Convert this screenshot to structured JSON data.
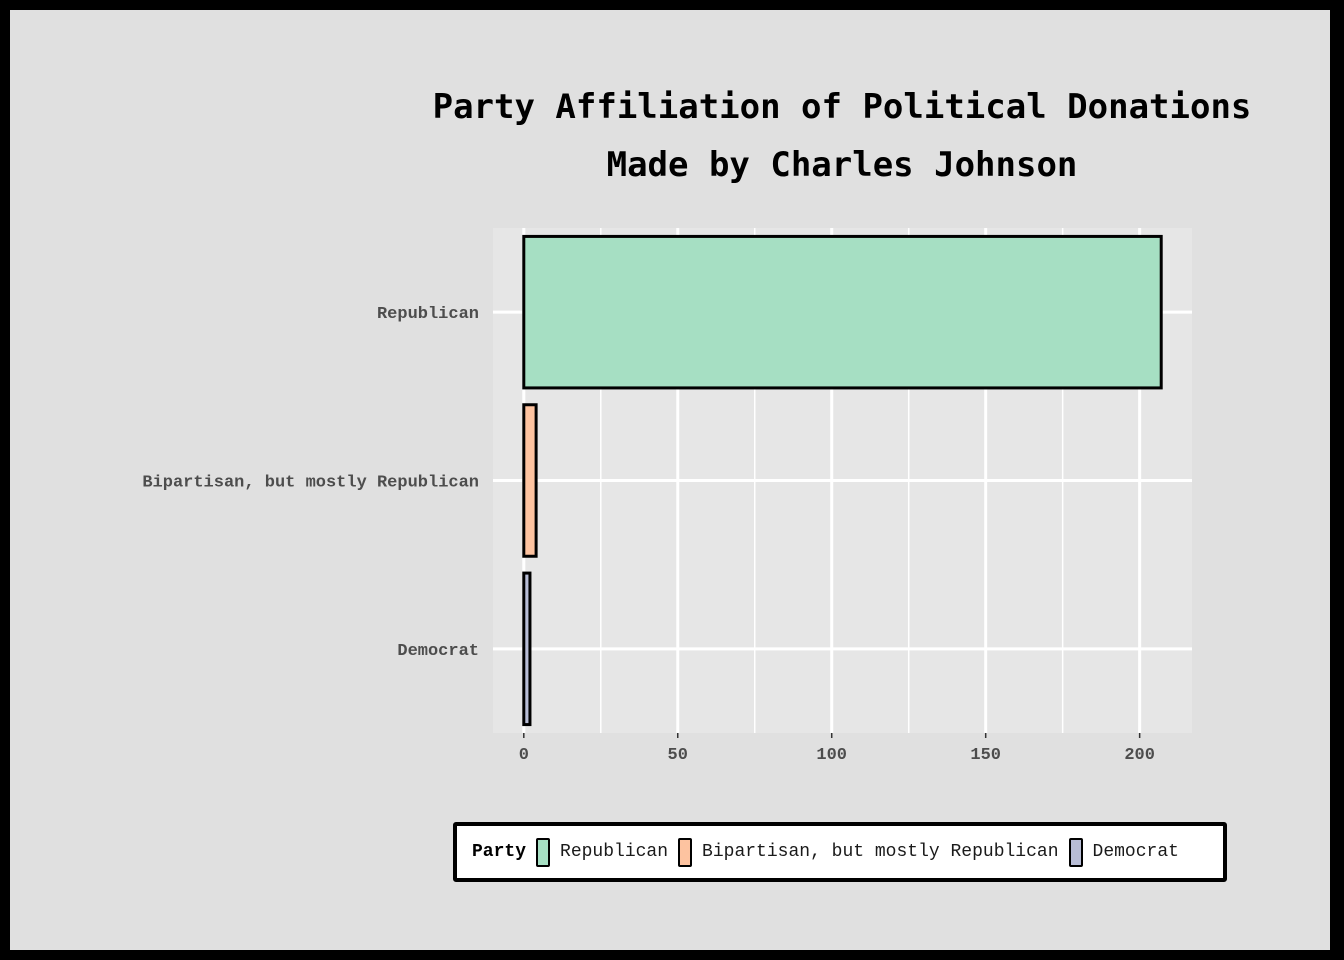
{
  "chart_data": {
    "type": "bar",
    "orientation": "horizontal",
    "title_lines": [
      "Party Affiliation of Political Donations",
      "Made by Charles Johnson"
    ],
    "xlabel": "",
    "ylabel": "",
    "categories": [
      "Republican",
      "Bipartisan, but mostly Republican",
      "Democrat"
    ],
    "values": [
      207,
      4,
      2
    ],
    "colors": [
      "#a6dfc3",
      "#fdc3a0",
      "#b8bdd6"
    ],
    "xlim": [
      -10,
      217
    ],
    "x_ticks": [
      0,
      50,
      100,
      150,
      200
    ],
    "grid": true,
    "legend": {
      "title": "Party",
      "position": "bottom",
      "items": [
        "Republican",
        "Bipartisan, but mostly Republican",
        "Democrat"
      ]
    }
  },
  "colors": {
    "background": "#e0e0e0",
    "panel": "#e6e6e6",
    "grid": "#ffffff",
    "frame": "#000000",
    "bar_outline": "#000000"
  }
}
